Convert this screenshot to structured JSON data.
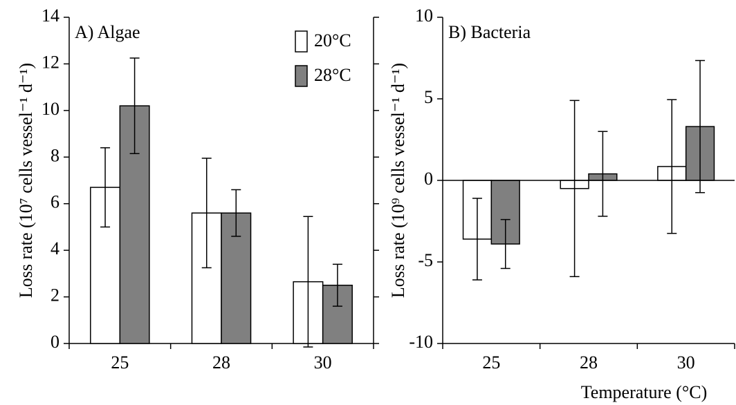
{
  "chart_data": [
    {
      "type": "bar",
      "title": "A) Algae",
      "y_label": "Loss rate (10⁷ cells vessel⁻¹ d⁻¹)",
      "categories": [
        "25",
        "28",
        "30"
      ],
      "series": [
        {
          "name": "20°C",
          "color": "#ffffff",
          "values": [
            6.7,
            5.6,
            2.65
          ],
          "errors": [
            1.7,
            2.35,
            2.8
          ]
        },
        {
          "name": "28°C",
          "color": "#808080",
          "values": [
            10.2,
            5.6,
            2.5
          ],
          "errors": [
            2.05,
            1.0,
            0.9
          ]
        }
      ],
      "ylim": [
        0,
        14
      ],
      "yticks": [
        0,
        2,
        4,
        6,
        8,
        10,
        12,
        14
      ],
      "legend": "upper right",
      "mirror_y_ticks": true
    },
    {
      "type": "bar",
      "title": "B) Bacteria",
      "y_label": "Loss rate (10⁹ cells vessel⁻¹ d⁻¹)",
      "x_label": "Temperature (°C)",
      "categories": [
        "25",
        "28",
        "30"
      ],
      "series": [
        {
          "name": "20°C",
          "color": "#ffffff",
          "values": [
            -3.6,
            -0.5,
            0.85
          ],
          "errors": [
            2.5,
            5.4,
            4.1
          ]
        },
        {
          "name": "28°C",
          "color": "#808080",
          "values": [
            -3.9,
            0.4,
            3.3
          ],
          "errors": [
            1.5,
            2.6,
            4.05
          ]
        }
      ],
      "ylim": [
        -10,
        10
      ],
      "yticks": [
        -10,
        -5,
        0,
        5,
        10
      ]
    }
  ]
}
